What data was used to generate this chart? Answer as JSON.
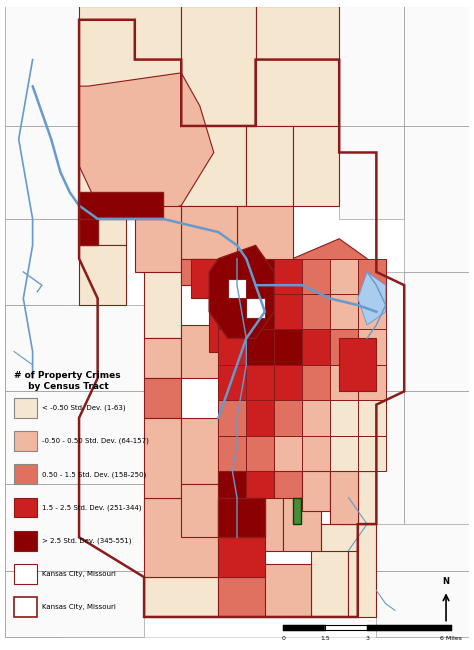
{
  "title": "# of Property Crimes\nby Census Tract",
  "colors": {
    "level1": "#F5E6D0",
    "level2": "#F0B8A0",
    "level3": "#E07060",
    "level4": "#CC2020",
    "level5": "#8B0000",
    "background": "#FFFFFF",
    "outside_bg": "#FAFAFA",
    "border_thin": "#888888",
    "border_thick": "#8B1A1A",
    "river": "#6699CC",
    "river_fill": "#AACCEE",
    "green_patch": "#4A8B3A"
  },
  "legend_labels": [
    "< -0.50 Std. Dev. (1-63)",
    "-0.50 - 0.50 Std. Dev. (64-157)",
    "0.50 - 1.5 Std. Dev. (158-250)",
    "1.5 - 2.5 Std. Dev. (251-344)",
    "> 2.5 Std. Dev. (345-551)",
    "Kansas City, Missouri"
  ],
  "legend_colors": [
    "#F5E6D0",
    "#F0B8A0",
    "#E07060",
    "#CC2020",
    "#8B0000",
    "#FFFFFF"
  ],
  "figsize": [
    4.74,
    6.5
  ],
  "dpi": 100
}
